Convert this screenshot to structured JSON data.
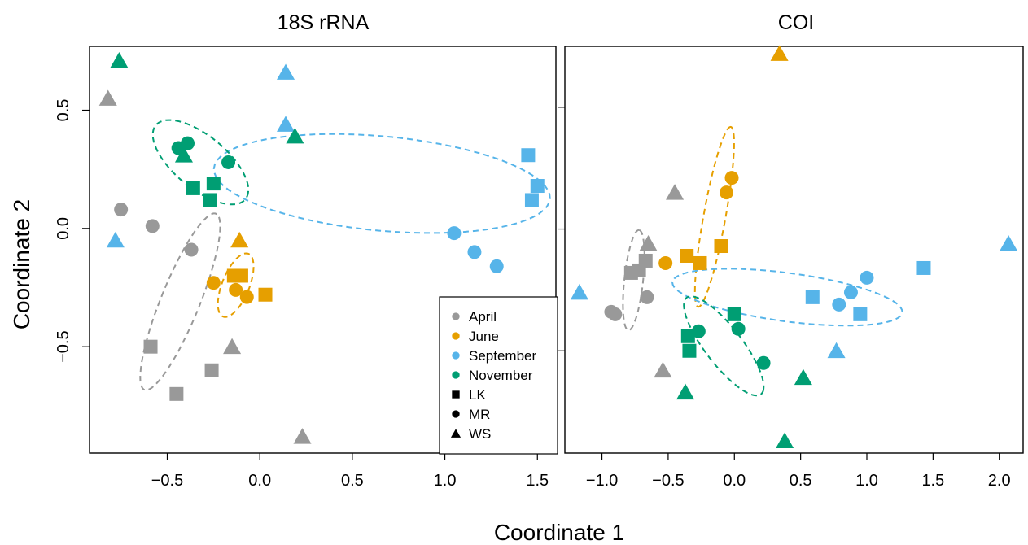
{
  "colors": {
    "April": "#999999",
    "June": "#E69F00",
    "September": "#56B4E9",
    "November": "#009E73"
  },
  "legend": {
    "months": [
      "April",
      "June",
      "September",
      "November"
    ],
    "sites": [
      {
        "label": "LK",
        "shape": "square"
      },
      {
        "label": "MR",
        "shape": "circle"
      },
      {
        "label": "WS",
        "shape": "triangle"
      }
    ]
  },
  "xlabel": "Coordinate 1",
  "ylabel": "Coordinate 2",
  "chart_data": [
    {
      "type": "scatter",
      "title": "18S rRNA",
      "xlim": [
        -0.92,
        1.6
      ],
      "ylim": [
        -0.95,
        0.77
      ],
      "xticks": [
        -0.5,
        0.0,
        0.5,
        1.0,
        1.5
      ],
      "xtick_labels": [
        "−0.5",
        "0.0",
        "0.5",
        "1.0",
        "1.5"
      ],
      "yticks": [
        -0.5,
        0.0,
        0.5
      ],
      "ytick_labels": [
        "−0.5",
        "0.0",
        "0.5"
      ],
      "points": [
        {
          "month": "April",
          "site": "LK",
          "x": -0.59,
          "y": -0.5
        },
        {
          "month": "April",
          "site": "LK",
          "x": -0.26,
          "y": -0.6
        },
        {
          "month": "April",
          "site": "LK",
          "x": -0.45,
          "y": -0.7
        },
        {
          "month": "April",
          "site": "MR",
          "x": -0.75,
          "y": 0.08
        },
        {
          "month": "April",
          "site": "MR",
          "x": -0.58,
          "y": 0.01
        },
        {
          "month": "April",
          "site": "MR",
          "x": -0.37,
          "y": -0.09
        },
        {
          "month": "April",
          "site": "WS",
          "x": -0.82,
          "y": 0.55
        },
        {
          "month": "April",
          "site": "WS",
          "x": -0.15,
          "y": -0.5
        },
        {
          "month": "April",
          "site": "WS",
          "x": 0.23,
          "y": -0.88
        },
        {
          "month": "June",
          "site": "LK",
          "x": -0.14,
          "y": -0.2
        },
        {
          "month": "June",
          "site": "LK",
          "x": -0.1,
          "y": -0.2
        },
        {
          "month": "June",
          "site": "LK",
          "x": 0.03,
          "y": -0.28
        },
        {
          "month": "June",
          "site": "MR",
          "x": -0.25,
          "y": -0.23
        },
        {
          "month": "June",
          "site": "MR",
          "x": -0.13,
          "y": -0.26
        },
        {
          "month": "June",
          "site": "MR",
          "x": -0.07,
          "y": -0.29
        },
        {
          "month": "June",
          "site": "WS",
          "x": -0.11,
          "y": -0.05
        },
        {
          "month": "September",
          "site": "LK",
          "x": 1.45,
          "y": 0.31
        },
        {
          "month": "September",
          "site": "LK",
          "x": 1.5,
          "y": 0.18
        },
        {
          "month": "September",
          "site": "LK",
          "x": 1.47,
          "y": 0.12
        },
        {
          "month": "September",
          "site": "MR",
          "x": 1.05,
          "y": -0.02
        },
        {
          "month": "September",
          "site": "MR",
          "x": 1.16,
          "y": -0.1
        },
        {
          "month": "September",
          "site": "MR",
          "x": 1.28,
          "y": -0.16
        },
        {
          "month": "September",
          "site": "WS",
          "x": 0.14,
          "y": 0.66
        },
        {
          "month": "September",
          "site": "WS",
          "x": 0.14,
          "y": 0.44
        },
        {
          "month": "September",
          "site": "WS",
          "x": -0.78,
          "y": -0.05
        },
        {
          "month": "November",
          "site": "LK",
          "x": -0.36,
          "y": 0.17
        },
        {
          "month": "November",
          "site": "LK",
          "x": -0.25,
          "y": 0.19
        },
        {
          "month": "November",
          "site": "LK",
          "x": -0.27,
          "y": 0.12
        },
        {
          "month": "November",
          "site": "MR",
          "x": -0.44,
          "y": 0.34
        },
        {
          "month": "November",
          "site": "MR",
          "x": -0.39,
          "y": 0.36
        },
        {
          "month": "November",
          "site": "MR",
          "x": -0.17,
          "y": 0.28
        },
        {
          "month": "November",
          "site": "WS",
          "x": -0.76,
          "y": 0.71
        },
        {
          "month": "November",
          "site": "WS",
          "x": -0.41,
          "y": 0.31
        },
        {
          "month": "November",
          "site": "WS",
          "x": 0.19,
          "y": 0.39
        }
      ],
      "ellipses": [
        {
          "month": "April",
          "cx": -0.43,
          "cy": -0.31,
          "rx": 0.42,
          "ry": 0.1,
          "angle": 62
        },
        {
          "month": "June",
          "cx": -0.13,
          "cy": -0.24,
          "rx": 0.15,
          "ry": 0.07,
          "angle": 60
        },
        {
          "month": "September",
          "cx": 0.66,
          "cy": 0.19,
          "rx": 0.91,
          "ry": 0.2,
          "angle": -4
        },
        {
          "month": "November",
          "cx": -0.32,
          "cy": 0.28,
          "rx": 0.29,
          "ry": 0.12,
          "angle": -30
        }
      ]
    },
    {
      "type": "scatter",
      "title": "COI",
      "xlim": [
        -1.28,
        2.18
      ],
      "ylim": [
        -0.92,
        0.75
      ],
      "xticks": [
        -1.0,
        -0.5,
        0.0,
        0.5,
        1.0,
        1.5,
        2.0
      ],
      "xtick_labels": [
        "−1.0",
        "−0.5",
        "0.0",
        "0.5",
        "1.0",
        "1.5",
        "2.0"
      ],
      "yticks": [
        -0.5,
        0.0,
        0.5
      ],
      "ytick_labels": [
        "",
        "",
        ""
      ],
      "points": [
        {
          "month": "April",
          "site": "LK",
          "x": -0.78,
          "y": -0.18
        },
        {
          "month": "April",
          "site": "LK",
          "x": -0.72,
          "y": -0.17
        },
        {
          "month": "April",
          "site": "LK",
          "x": -0.67,
          "y": -0.13
        },
        {
          "month": "April",
          "site": "MR",
          "x": -0.93,
          "y": -0.34
        },
        {
          "month": "April",
          "site": "MR",
          "x": -0.9,
          "y": -0.35
        },
        {
          "month": "April",
          "site": "MR",
          "x": -0.66,
          "y": -0.28
        },
        {
          "month": "April",
          "site": "WS",
          "x": -0.65,
          "y": -0.06
        },
        {
          "month": "April",
          "site": "WS",
          "x": -0.45,
          "y": 0.15
        },
        {
          "month": "April",
          "site": "WS",
          "x": -0.54,
          "y": -0.58
        },
        {
          "month": "June",
          "site": "LK",
          "x": -0.36,
          "y": -0.11
        },
        {
          "month": "June",
          "site": "LK",
          "x": -0.26,
          "y": -0.14
        },
        {
          "month": "June",
          "site": "LK",
          "x": -0.1,
          "y": -0.07
        },
        {
          "month": "June",
          "site": "MR",
          "x": -0.52,
          "y": -0.14
        },
        {
          "month": "June",
          "site": "MR",
          "x": -0.06,
          "y": 0.15
        },
        {
          "month": "June",
          "site": "MR",
          "x": -0.02,
          "y": 0.21
        },
        {
          "month": "June",
          "site": "WS",
          "x": 0.34,
          "y": 0.72
        },
        {
          "month": "September",
          "site": "LK",
          "x": 0.59,
          "y": -0.28
        },
        {
          "month": "September",
          "site": "LK",
          "x": 0.95,
          "y": -0.35
        },
        {
          "month": "September",
          "site": "LK",
          "x": 1.43,
          "y": -0.16
        },
        {
          "month": "September",
          "site": "MR",
          "x": 0.79,
          "y": -0.31
        },
        {
          "month": "September",
          "site": "MR",
          "x": 0.88,
          "y": -0.26
        },
        {
          "month": "September",
          "site": "MR",
          "x": 1.0,
          "y": -0.2
        },
        {
          "month": "September",
          "site": "WS",
          "x": -1.17,
          "y": -0.26
        },
        {
          "month": "September",
          "site": "WS",
          "x": 0.77,
          "y": -0.5
        },
        {
          "month": "September",
          "site": "WS",
          "x": 2.07,
          "y": -0.06
        },
        {
          "month": "November",
          "site": "LK",
          "x": 0.0,
          "y": -0.35
        },
        {
          "month": "November",
          "site": "LK",
          "x": -0.35,
          "y": -0.44
        },
        {
          "month": "November",
          "site": "LK",
          "x": -0.34,
          "y": -0.5
        },
        {
          "month": "November",
          "site": "MR",
          "x": -0.27,
          "y": -0.42
        },
        {
          "month": "November",
          "site": "MR",
          "x": 0.03,
          "y": -0.41
        },
        {
          "month": "November",
          "site": "MR",
          "x": 0.22,
          "y": -0.55
        },
        {
          "month": "November",
          "site": "WS",
          "x": -0.37,
          "y": -0.67
        },
        {
          "month": "November",
          "site": "WS",
          "x": 0.52,
          "y": -0.61
        },
        {
          "month": "November",
          "site": "WS",
          "x": 0.38,
          "y": -0.87
        }
      ],
      "ellipses": [
        {
          "month": "April",
          "cx": -0.76,
          "cy": -0.21,
          "rx": 0.21,
          "ry": 0.07,
          "angle": 78
        },
        {
          "month": "June",
          "cx": -0.15,
          "cy": 0.05,
          "rx": 0.39,
          "ry": 0.08,
          "angle": 71
        },
        {
          "month": "September",
          "cx": 0.4,
          "cy": -0.28,
          "rx": 0.87,
          "ry": 0.1,
          "angle": -4
        },
        {
          "month": "November",
          "cx": -0.08,
          "cy": -0.48,
          "rx": 0.35,
          "ry": 0.1,
          "angle": -32
        }
      ]
    }
  ]
}
